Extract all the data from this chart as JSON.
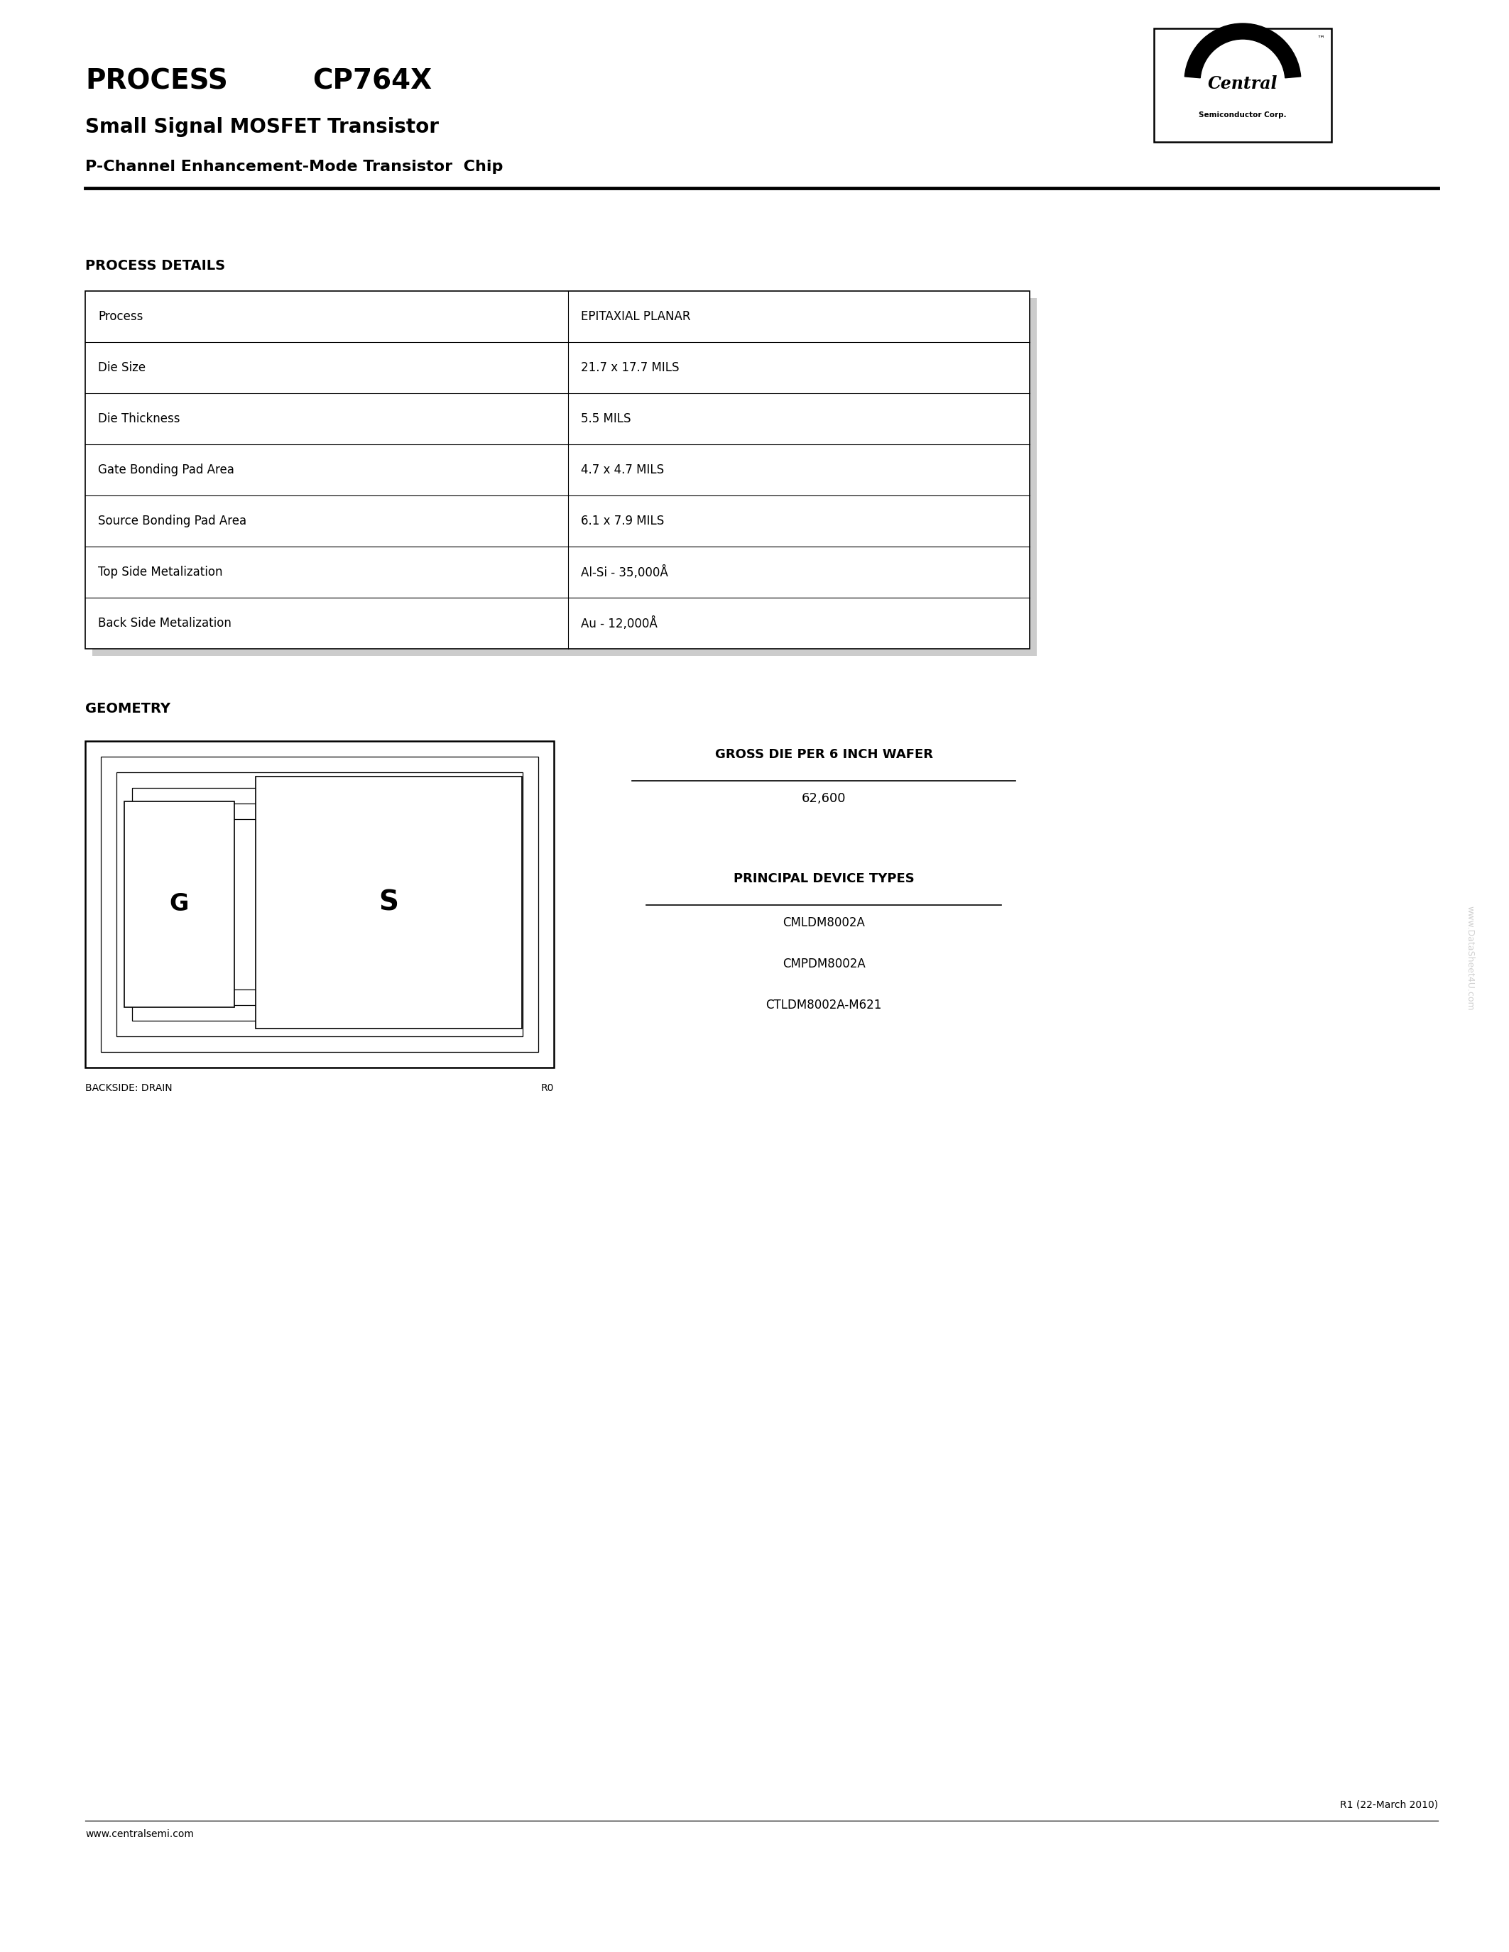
{
  "title_process": "PROCESS",
  "title_model": "CP764X",
  "subtitle1": "Small Signal MOSFET Transistor",
  "subtitle2": "P-Channel Enhancement-Mode Transistor  Chip",
  "company_name": "Central",
  "company_sub": "Semiconductor Corp.",
  "section_process": "PROCESS DETAILS",
  "table_data": [
    [
      "Process",
      "EPITAXIAL PLANAR"
    ],
    [
      "Die Size",
      "21.7 x 17.7 MILS"
    ],
    [
      "Die Thickness",
      "5.5 MILS"
    ],
    [
      "Gate Bonding Pad Area",
      "4.7 x 4.7 MILS"
    ],
    [
      "Source Bonding Pad Area",
      "6.1 x 7.9 MILS"
    ],
    [
      "Top Side Metalization",
      "Al-Si - 35,000Å"
    ],
    [
      "Back Side Metalization",
      "Au - 12,000Å"
    ]
  ],
  "section_geometry": "GEOMETRY",
  "gross_die_title": "GROSS DIE PER 6 INCH WAFER",
  "gross_die_value": "62,600",
  "principal_title": "PRINCIPAL DEVICE TYPES",
  "principal_devices": [
    "CMLDM8002A",
    "CMPDM8002A",
    "CTLDM8002A-M621"
  ],
  "backside_label": "BACKSIDE: DRAIN",
  "r0_label": "R0",
  "footer_rev": "R1 (22-March 2010)",
  "footer_web": "www.centralsemi.com",
  "watermark": "www.DataSheet4U.com",
  "bg_color": "#ffffff",
  "text_color": "#000000",
  "table_border_color": "#000000",
  "shadow_color": "#cccccc"
}
